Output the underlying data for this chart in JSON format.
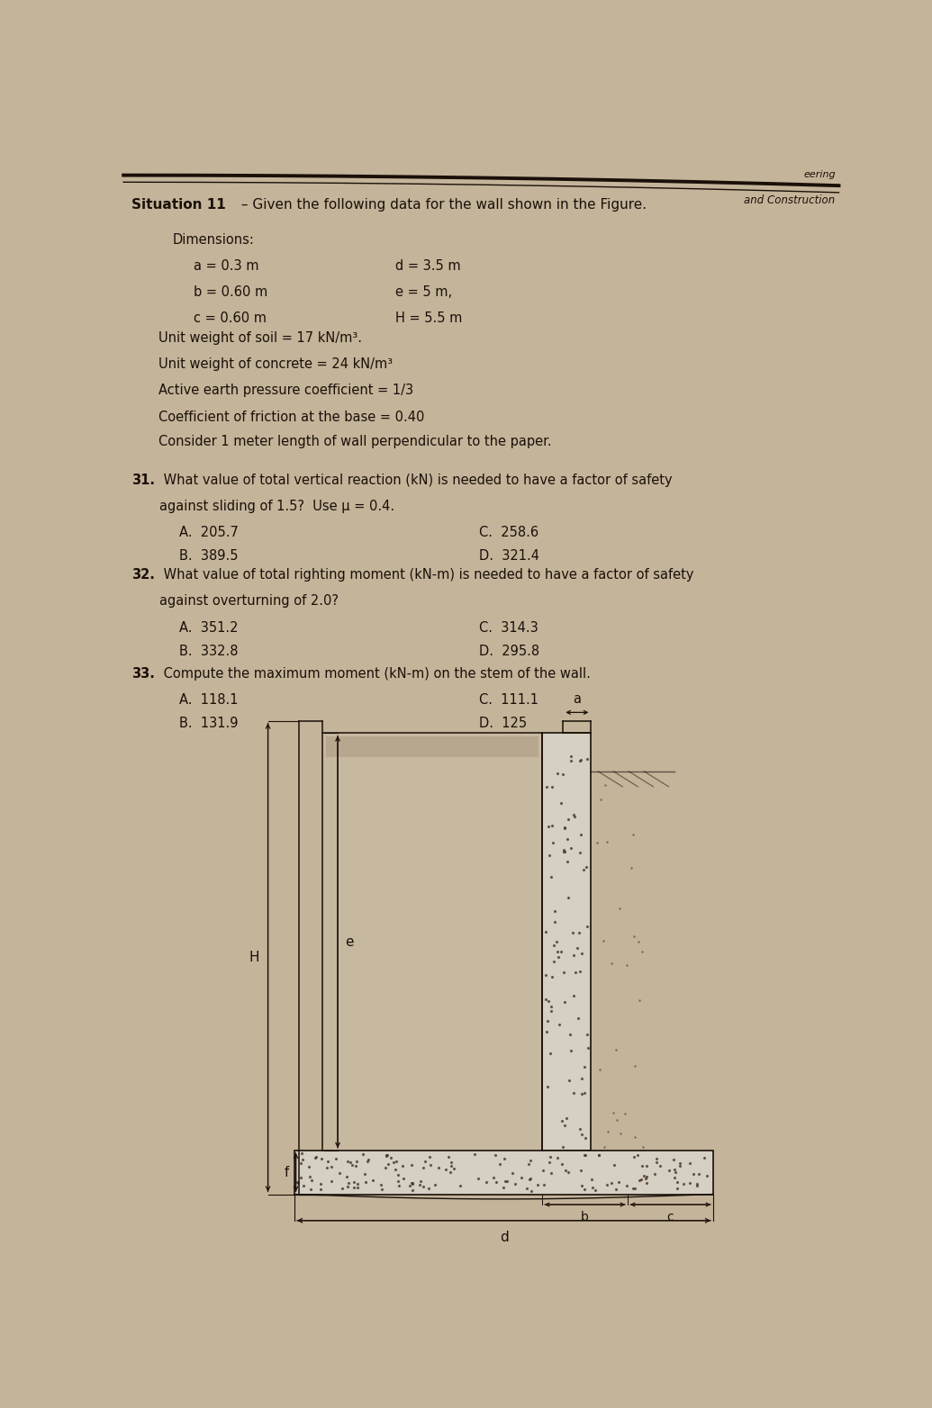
{
  "title_bold": "Situation 11",
  "title_rest": " – Given the following data for the wall shown in the Figure.",
  "header_eering": "eering",
  "header_construction": "and Construction",
  "dimensions_label": "Dimensions:",
  "dim_a": "a = 0.3 m",
  "dim_b": "b = 0.60 m",
  "dim_c": "c = 0.60 m",
  "dim_d": "d = 3.5 m",
  "dim_e": "e = 5 m,",
  "dim_H": "H = 5.5 m",
  "prop1": "Unit weight of soil = 17 kN/m³.",
  "prop2": "Unit weight of concrete = 24 kN/m³",
  "prop3": "Active earth pressure coefficient = 1/3",
  "prop4": "Coefficient of friction at the base = 0.40",
  "consider": "Consider 1 meter length of wall perpendicular to the paper.",
  "q31_num": "31.",
  "q31_text": " What value of total vertical reaction (kN) is needed to have a factor of safety",
  "q31_text2": "against sliding of 1.5?  Use μ = 0.4.",
  "q31_A": "A.  205.7",
  "q31_B": "B.  389.5",
  "q31_C": "C.  258.6",
  "q31_D": "D.  321.4",
  "q32_num": "32.",
  "q32_text": " What value of total righting moment (kN-m) is needed to have a factor of safety",
  "q32_text2": "against overturning of 2.0?",
  "q32_A": "A.  351.2",
  "q32_B": "B.  332.8",
  "q32_C": "C.  314.3",
  "q32_D": "D.  295.8",
  "q33_num": "33.",
  "q33_text": " Compute the maximum moment (kN-m) on the stem of the wall.",
  "q33_A": "A.  118.1",
  "q33_B": "B.  131.9",
  "q33_C": "C.  111.1",
  "q33_D": "D.  125",
  "bg_color": "#c4b49a",
  "text_color": "#1a1008",
  "line_color": "#1a1008",
  "soil_fill_color": "#b8ab96",
  "concrete_color": "#d5cfc4",
  "dot_color": "#4a3828"
}
